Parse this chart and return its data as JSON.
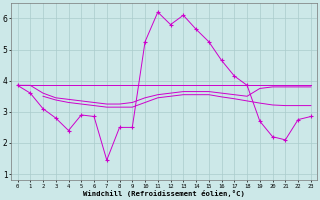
{
  "xlabel": "Windchill (Refroidissement éolien,°C)",
  "background_color": "#cce8e8",
  "grid_color": "#aacccc",
  "line_color": "#cc00cc",
  "x_ticks": [
    0,
    1,
    2,
    3,
    4,
    5,
    6,
    7,
    8,
    9,
    10,
    11,
    12,
    13,
    14,
    15,
    16,
    17,
    18,
    19,
    20,
    21,
    22,
    23
  ],
  "ylim": [
    0.8,
    6.5
  ],
  "xlim": [
    -0.5,
    23.5
  ],
  "line1_x": [
    0,
    1,
    2,
    3,
    4,
    5,
    6,
    7,
    8,
    9,
    10,
    11,
    12,
    13,
    14,
    15,
    16,
    17,
    18,
    19,
    20,
    21,
    22,
    23
  ],
  "line1_y": [
    3.85,
    3.85,
    3.85,
    3.85,
    3.85,
    3.85,
    3.85,
    3.85,
    3.85,
    3.85,
    3.85,
    3.85,
    3.85,
    3.85,
    3.85,
    3.85,
    3.85,
    3.85,
    3.85,
    3.85,
    3.85,
    3.85,
    3.85,
    3.85
  ],
  "line2_x": [
    0,
    1,
    2,
    3,
    4,
    5,
    6,
    7,
    8,
    9,
    10,
    11,
    12,
    13,
    14,
    15,
    16,
    17,
    18,
    19,
    20,
    21,
    22,
    23
  ],
  "line2_y": [
    3.85,
    3.85,
    3.6,
    3.45,
    3.4,
    3.35,
    3.3,
    3.25,
    3.25,
    3.3,
    3.45,
    3.55,
    3.6,
    3.65,
    3.65,
    3.65,
    3.6,
    3.55,
    3.5,
    3.75,
    3.8,
    3.8,
    3.8,
    3.8
  ],
  "line3_x": [
    2,
    3,
    4,
    5,
    6,
    7,
    8,
    9,
    10,
    11,
    12,
    13,
    14,
    15,
    16,
    17,
    18,
    19,
    20,
    21,
    22,
    23
  ],
  "line3_y": [
    3.5,
    3.38,
    3.3,
    3.25,
    3.2,
    3.15,
    3.15,
    3.15,
    3.3,
    3.45,
    3.5,
    3.55,
    3.55,
    3.55,
    3.48,
    3.42,
    3.35,
    3.28,
    3.22,
    3.2,
    3.2,
    3.2
  ],
  "line4_x": [
    0,
    1,
    2,
    3,
    4,
    5,
    6,
    7,
    8,
    9,
    10,
    11,
    12,
    13,
    14,
    15,
    16,
    17,
    18,
    19,
    20,
    21,
    22,
    23
  ],
  "line4_y": [
    3.85,
    3.6,
    3.1,
    2.8,
    2.4,
    2.9,
    2.85,
    1.45,
    2.5,
    2.5,
    5.25,
    6.2,
    5.8,
    6.1,
    5.65,
    5.25,
    4.65,
    4.15,
    3.85,
    2.7,
    2.2,
    2.1,
    2.75,
    2.85
  ]
}
